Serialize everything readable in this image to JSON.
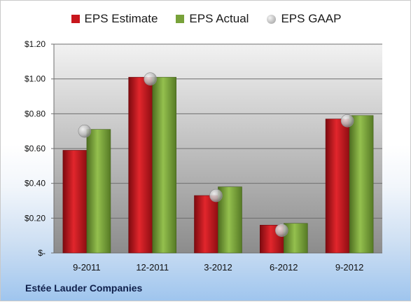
{
  "chart_data": {
    "type": "bar",
    "categories": [
      "9-2011",
      "12-2011",
      "3-2012",
      "6-2012",
      "9-2012"
    ],
    "series": [
      {
        "name": "EPS Estimate",
        "values": [
          0.59,
          1.01,
          0.33,
          0.16,
          0.77
        ],
        "color": "#c8161d",
        "kind": "bar"
      },
      {
        "name": "EPS Actual",
        "values": [
          0.71,
          1.01,
          0.38,
          0.17,
          0.79
        ],
        "color": "#78a23a",
        "kind": "bar"
      },
      {
        "name": "EPS GAAP",
        "values": [
          0.7,
          1.0,
          0.33,
          0.13,
          0.76
        ],
        "color": "#b4b4b4",
        "kind": "marker"
      }
    ],
    "yticks": [
      {
        "value": 0,
        "label": "$-"
      },
      {
        "value": 0.2,
        "label": "$0.20"
      },
      {
        "value": 0.4,
        "label": "$0.40"
      },
      {
        "value": 0.6,
        "label": "$0.60"
      },
      {
        "value": 0.8,
        "label": "$0.80"
      },
      {
        "value": 1.0,
        "label": "$1.00"
      },
      {
        "value": 1.2,
        "label": "$1.20"
      }
    ],
    "ylim": [
      0,
      1.2
    ],
    "grid": true,
    "legend_position": "top"
  },
  "footer": {
    "company": "Estée Lauder Companies"
  }
}
